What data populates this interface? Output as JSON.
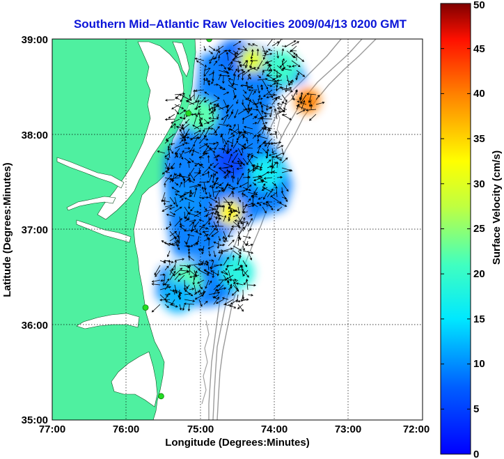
{
  "map": {
    "title": "Southern Mid–Atlantic Raw Velocities 2009/04/13 0200 GMT",
    "x_label": "Longitude (Degrees:Minutes)",
    "y_label": "Latitude (Degrees:Minutes)",
    "x_ticks": [
      "77:00",
      "76:00",
      "75:00",
      "74:00",
      "73:00",
      "72:00"
    ],
    "y_ticks": [
      "39:00",
      "38:00",
      "37:00",
      "36:00",
      "35:00"
    ],
    "land_color": "#4ff0a0",
    "water_color": "#ffffff",
    "bathymetry_color": "#9a9a9a",
    "station_color": "#22dd22",
    "vector_color": "#000000"
  },
  "colorbar": {
    "label": "Surface Velocity (cm/s)",
    "ticks": [
      "0",
      "5",
      "10",
      "15",
      "20",
      "25",
      "30",
      "35",
      "40",
      "45",
      "50"
    ],
    "min": 0,
    "max": 50,
    "colormap": "jet"
  },
  "chart_data": {
    "type": "heatmap",
    "title": "Southern Mid–Atlantic Raw Velocities 2009/04/13 0200 GMT",
    "xlabel": "Longitude (Degrees:Minutes)",
    "ylabel": "Latitude (Degrees:Minutes)",
    "xlim": [
      -77,
      -72
    ],
    "ylim": [
      35,
      39
    ],
    "value_label": "Surface Velocity (cm/s)",
    "value_range": [
      0,
      50
    ],
    "grid": true,
    "stations": [
      {
        "lon": -74.88,
        "lat": 39.0
      },
      {
        "lon": -75.16,
        "lat": 38.22
      },
      {
        "lon": -75.74,
        "lat": 36.18
      },
      {
        "lon": -75.53,
        "lat": 35.25
      }
    ],
    "velocity_patches": [
      {
        "lon": -74.55,
        "lat": 38.82,
        "speed": 8
      },
      {
        "lon": -74.3,
        "lat": 38.78,
        "speed": 30
      },
      {
        "lon": -73.9,
        "lat": 38.7,
        "speed": 20
      },
      {
        "lon": -73.55,
        "lat": 38.35,
        "speed": 40
      },
      {
        "lon": -75.0,
        "lat": 38.2,
        "speed": 22
      },
      {
        "lon": -74.6,
        "lat": 37.7,
        "speed": 5
      },
      {
        "lon": -74.1,
        "lat": 37.6,
        "speed": 16
      },
      {
        "lon": -74.6,
        "lat": 37.18,
        "speed": 33
      },
      {
        "lon": -75.2,
        "lat": 37.3,
        "speed": 10
      },
      {
        "lon": -74.5,
        "lat": 36.55,
        "speed": 18
      },
      {
        "lon": -75.2,
        "lat": 36.45,
        "speed": 22
      },
      {
        "lon": -75.3,
        "lat": 36.3,
        "speed": 12
      }
    ]
  }
}
